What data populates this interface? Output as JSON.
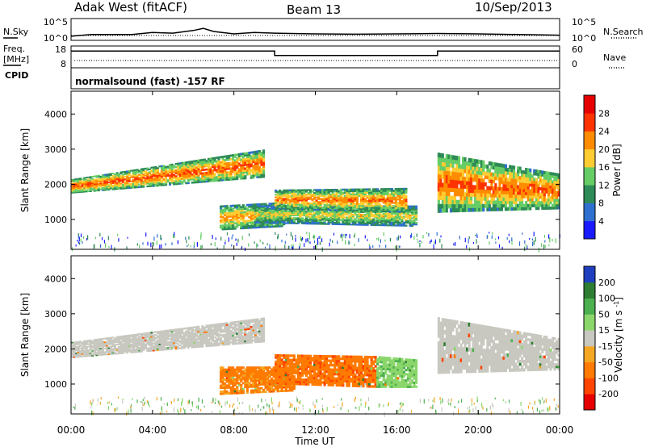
{
  "header": {
    "station": "Adak West (fitACF)",
    "beam": "Beam 13",
    "date": "10/Sep/2013"
  },
  "mode_line": "normalsound (fast) -157 RF",
  "side_labels": {
    "nsky": "N.Sky",
    "freq_line1": "Freq.",
    "freq_line2": "[MHz]",
    "cpid": "CPID",
    "nsearch": "N.Search",
    "nave": "Nave"
  },
  "chart_data": [
    {
      "type": "line",
      "name": "noise",
      "left_ticks": [
        "10^5",
        "10^0"
      ],
      "right_ticks": [
        "10^5",
        "10^0"
      ],
      "series": [
        {
          "name": "N.Sky",
          "x_hours": [
            0.0,
            1.0,
            2.0,
            3.0,
            4.0,
            5.0,
            6.0,
            6.5,
            7.0,
            8.0,
            9.0,
            10.0,
            12.0,
            14.0,
            16.0,
            18.0,
            20.0,
            22.0,
            24.0
          ],
          "y_log10": [
            0.5,
            1.0,
            1.0,
            1.0,
            1.6,
            1.4,
            2.2,
            2.8,
            1.9,
            1.2,
            1.6,
            1.4,
            1.2,
            1.1,
            1.2,
            1.3,
            1.2,
            1.0,
            0.8
          ]
        }
      ]
    },
    {
      "type": "line",
      "name": "frequency_and_nave",
      "left_ticks": [
        "18",
        "8"
      ],
      "right_ticks": [
        "60",
        "0"
      ],
      "series": [
        {
          "name": "Freq.",
          "x_hours": [
            0.0,
            10.0,
            10.0,
            18.0,
            18.0,
            24.0
          ],
          "y": [
            16.5,
            16.5,
            14.0,
            14.0,
            16.5,
            16.5
          ]
        },
        {
          "name": "Nave",
          "x_hours": [
            0.0,
            24.0
          ],
          "y": [
            10,
            10
          ]
        }
      ]
    },
    {
      "type": "heatmap",
      "name": "power",
      "ylabel": "Slant Range [km]",
      "yticks": [
        1000,
        2000,
        3000,
        4000
      ],
      "colorbar_label": "Power [dB]",
      "colorbar_ticks": [
        4,
        8,
        12,
        16,
        20,
        24,
        28
      ],
      "colors": [
        "#1a1aff",
        "#2f6fd0",
        "#2e8b57",
        "#66cc66",
        "#ffcc33",
        "#ff8c00",
        "#ff3300",
        "#e60000"
      ],
      "regions": [
        {
          "t0": 0.0,
          "t1": 9.5,
          "r_min_start": 1750,
          "r_max_start": 2150,
          "r_min_end": 2200,
          "r_max_end": 3000,
          "peak_db": 26
        },
        {
          "t0": 7.3,
          "t1": 10.5,
          "r_min_start": 700,
          "r_max_start": 1400,
          "r_min_end": 800,
          "r_max_end": 1500,
          "peak_db": 22
        },
        {
          "t0": 9.0,
          "t1": 17.0,
          "r_min_start": 900,
          "r_max_start": 1400,
          "r_min_end": 800,
          "r_max_end": 1400,
          "peak_db": 18
        },
        {
          "t0": 10.0,
          "t1": 16.5,
          "r_min_start": 1300,
          "r_max_start": 1850,
          "r_min_end": 1200,
          "r_max_end": 1900,
          "peak_db": 24
        },
        {
          "t0": 18.0,
          "t1": 24.0,
          "r_min_start": 1200,
          "r_max_start": 2900,
          "r_min_end": 1300,
          "r_max_end": 2300,
          "peak_db": 26
        }
      ]
    },
    {
      "type": "heatmap",
      "name": "velocity",
      "ylabel": "Slant Range [km]",
      "yticks": [
        1000,
        2000,
        3000,
        4000
      ],
      "colorbar_label": "Velocity [m s^-1]",
      "colorbar_ticks": [
        200,
        100,
        50,
        15,
        -15,
        -50,
        -100,
        -200
      ],
      "colors": [
        "#1f3fbf",
        "#2e7d32",
        "#4caf50",
        "#8bd66b",
        "#c8c8c0",
        "#f5a623",
        "#ff7a00",
        "#ff4500",
        "#e60000"
      ],
      "regions": [
        {
          "t0": 0.0,
          "t1": 9.5,
          "r_min_start": 1750,
          "r_max_start": 2200,
          "r_min_end": 2200,
          "r_max_end": 2900,
          "velocity": 0
        },
        {
          "t0": 7.3,
          "t1": 11.0,
          "r_min_start": 700,
          "r_max_start": 1500,
          "r_min_end": 800,
          "r_max_end": 1500,
          "velocity": -60
        },
        {
          "t0": 10.0,
          "t1": 15.0,
          "r_min_start": 1000,
          "r_max_start": 1850,
          "r_min_end": 900,
          "r_max_end": 1800,
          "velocity": -90
        },
        {
          "t0": 15.0,
          "t1": 17.0,
          "r_min_start": 900,
          "r_max_start": 1800,
          "r_min_end": 900,
          "r_max_end": 1700,
          "velocity": 40
        },
        {
          "t0": 18.0,
          "t1": 24.0,
          "r_min_start": 1300,
          "r_max_start": 2900,
          "r_min_end": 1400,
          "r_max_end": 2300,
          "velocity": 0
        }
      ]
    }
  ],
  "x_axis": {
    "ticks": [
      "00:00",
      "04:00",
      "08:00",
      "12:00",
      "16:00",
      "20:00",
      "00:00"
    ],
    "label": "Time UT"
  }
}
